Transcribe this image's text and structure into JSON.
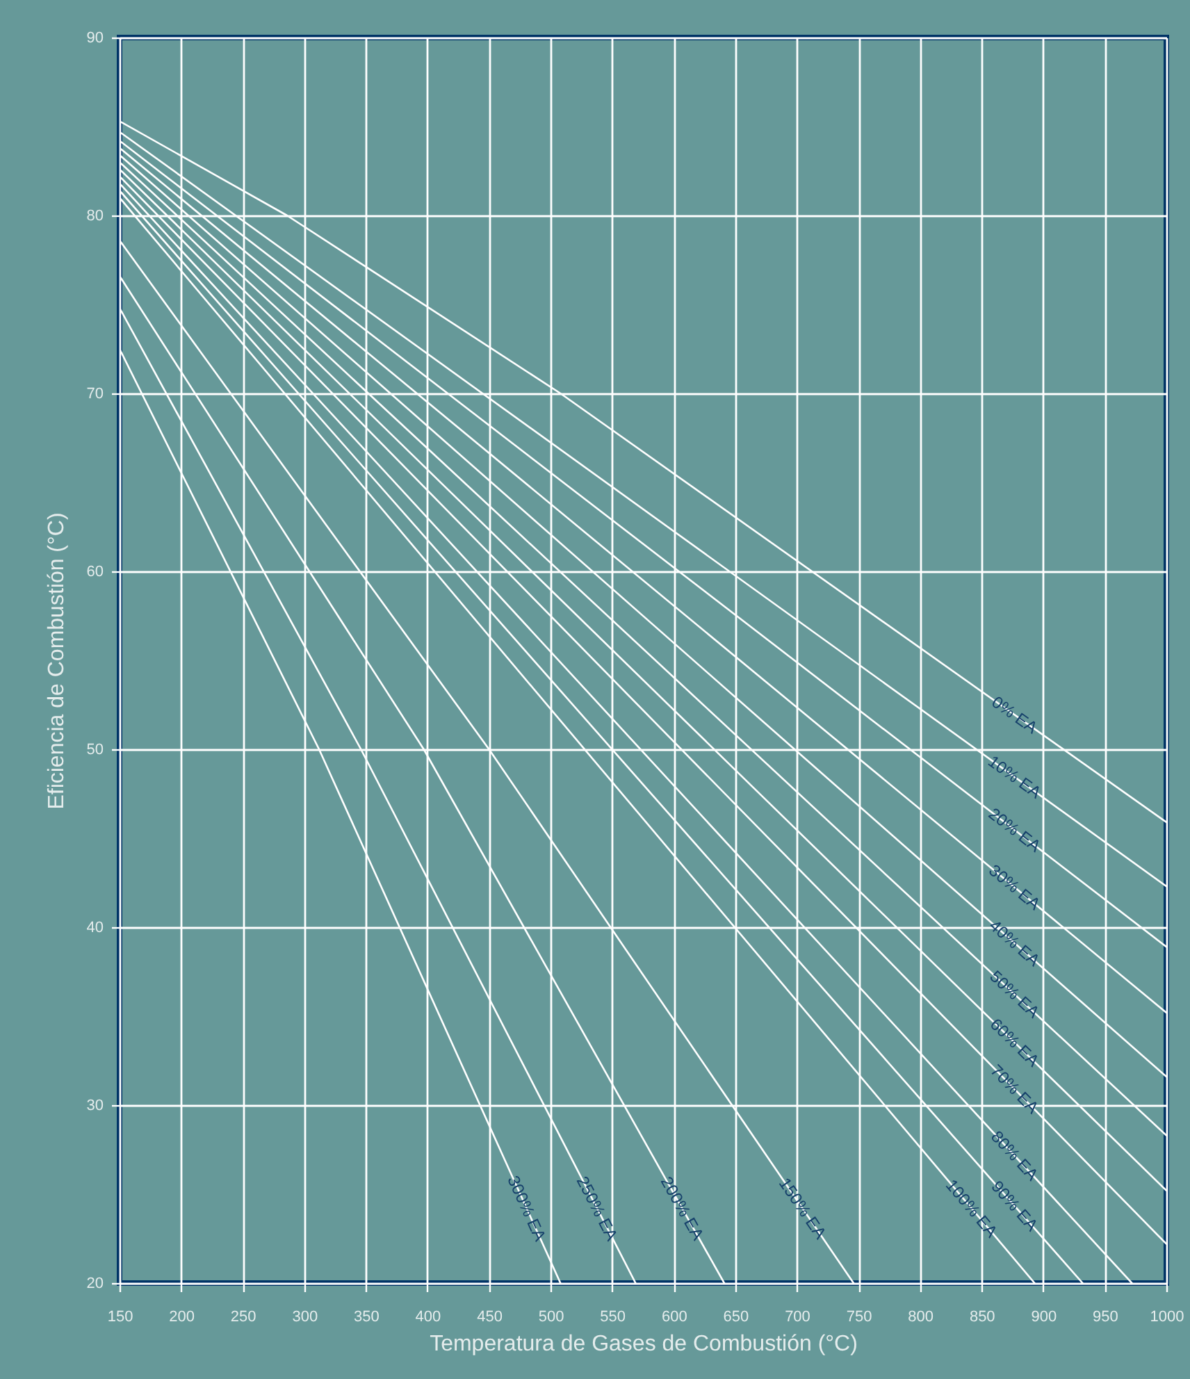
{
  "chart_data": {
    "type": "line",
    "xlabel": "Temperatura de Gases de Combustión (°C)",
    "ylabel": "Eficiencia de Combustión (°C)",
    "xlim": [
      150,
      1000
    ],
    "xticks": [
      150,
      200,
      250,
      300,
      350,
      400,
      450,
      500,
      550,
      600,
      650,
      700,
      750,
      800,
      850,
      900,
      950,
      1000
    ],
    "ylim": [
      20,
      90
    ],
    "yticks": [
      20,
      30,
      40,
      50,
      60,
      70,
      80,
      90
    ],
    "grid": true,
    "series": [
      {
        "name": "0% EA",
        "color": "#ffffff",
        "x": [
          150,
          286,
          508,
          1000
        ],
        "values": [
          85.3,
          80,
          70,
          45.9
        ]
      },
      {
        "name": "10% EA",
        "color": "#ffffff",
        "x": [
          150,
          1000
        ],
        "values": [
          84.7,
          42.3
        ]
      },
      {
        "name": "20% EA",
        "color": "#ffffff",
        "x": [
          150,
          1000
        ],
        "values": [
          84.2,
          38.9
        ]
      },
      {
        "name": "30% EA",
        "color": "#ffffff",
        "x": [
          150,
          1000
        ],
        "values": [
          83.8,
          35.2
        ]
      },
      {
        "name": "40% EA",
        "color": "#ffffff",
        "x": [
          150,
          1000
        ],
        "values": [
          83.4,
          31.6
        ]
      },
      {
        "name": "50% EA",
        "color": "#ffffff",
        "x": [
          150,
          1000
        ],
        "values": [
          83.0,
          28.3
        ]
      },
      {
        "name": "60% EA",
        "color": "#ffffff",
        "x": [
          150,
          1000
        ],
        "values": [
          82.6,
          25.2
        ]
      },
      {
        "name": "70% EA",
        "color": "#ffffff",
        "x": [
          150,
          1000
        ],
        "values": [
          82.2,
          22.2
        ]
      },
      {
        "name": "80% EA",
        "color": "#ffffff",
        "x": [
          150,
          972
        ],
        "values": [
          81.8,
          20
        ]
      },
      {
        "name": "90% EA",
        "color": "#ffffff",
        "x": [
          150,
          932
        ],
        "values": [
          81.4,
          20
        ]
      },
      {
        "name": "100% EA",
        "color": "#ffffff",
        "x": [
          150,
          893
        ],
        "values": [
          81.0,
          20
        ]
      },
      {
        "name": "150% EA",
        "color": "#ffffff",
        "x": [
          150,
          450,
          746
        ],
        "values": [
          78.6,
          50,
          20
        ]
      },
      {
        "name": "200% EA",
        "color": "#ffffff",
        "x": [
          150,
          397,
          641
        ],
        "values": [
          76.6,
          50,
          20
        ]
      },
      {
        "name": "250% EA",
        "color": "#ffffff",
        "x": [
          150,
          346,
          569
        ],
        "values": [
          74.8,
          50,
          20
        ]
      },
      {
        "name": "300% EA",
        "color": "#ffffff",
        "x": [
          150,
          312,
          508
        ],
        "values": [
          72.5,
          50,
          20
        ]
      }
    ]
  }
}
